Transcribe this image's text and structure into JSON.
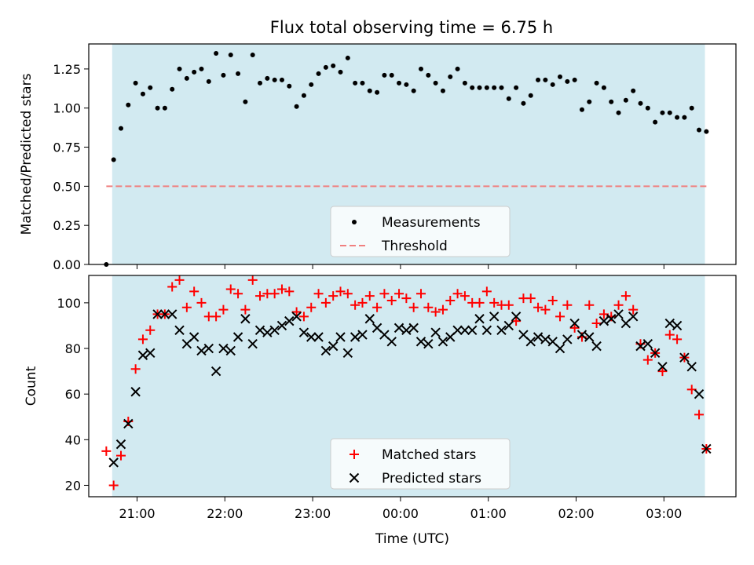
{
  "title": "Flux total observing time = 6.75 h",
  "colors": {
    "band": "#add8e6",
    "measurement": "#000000",
    "threshold": "#f08080",
    "matched": "#ff0000",
    "predicted": "#000000"
  },
  "chart_data": [
    {
      "type": "scatter",
      "title": "Flux total observing time = 6.75 h",
      "xlabel": "",
      "ylabel": "Matched/Predicted stars",
      "xlim_hours": [
        20.45,
        3.82
      ],
      "ylim": [
        0,
        1.41
      ],
      "yticks": [
        "0.00",
        "0.25",
        "0.50",
        "0.75",
        "1.00",
        "1.25"
      ],
      "observing_window": [
        "20:43",
        "03:28"
      ],
      "threshold": 0.5,
      "grid": false,
      "legend_position": "lower-center",
      "legend": [
        "Measurements",
        "Threshold"
      ],
      "series": [
        {
          "name": "Measurements",
          "x": [
            "20:39",
            "20:44",
            "20:49",
            "20:54",
            "20:59",
            "21:04",
            "21:09",
            "21:14",
            "21:19",
            "21:24",
            "21:29",
            "21:34",
            "21:39",
            "21:44",
            "21:49",
            "21:54",
            "21:59",
            "22:04",
            "22:09",
            "22:14",
            "22:19",
            "22:24",
            "22:29",
            "22:34",
            "22:39",
            "22:44",
            "22:49",
            "22:54",
            "22:59",
            "23:04",
            "23:09",
            "23:14",
            "23:19",
            "23:24",
            "23:29",
            "23:34",
            "23:39",
            "23:44",
            "23:49",
            "23:54",
            "23:59",
            "00:04",
            "00:09",
            "00:14",
            "00:19",
            "00:24",
            "00:29",
            "00:34",
            "00:39",
            "00:44",
            "00:49",
            "00:54",
            "00:59",
            "01:04",
            "01:09",
            "01:14",
            "01:19",
            "01:24",
            "01:29",
            "01:34",
            "01:39",
            "01:44",
            "01:49",
            "01:54",
            "01:59",
            "02:04",
            "02:09",
            "02:14",
            "02:19",
            "02:24",
            "02:29",
            "02:34",
            "02:39",
            "02:44",
            "02:49",
            "02:54",
            "02:59",
            "03:04",
            "03:09",
            "03:14",
            "03:19",
            "03:24",
            "03:29"
          ],
          "values": [
            0.0,
            0.67,
            0.87,
            1.02,
            1.16,
            1.09,
            1.13,
            1.0,
            1.0,
            1.12,
            1.25,
            1.19,
            1.23,
            1.25,
            1.17,
            1.35,
            1.21,
            1.34,
            1.22,
            1.04,
            1.34,
            1.16,
            1.19,
            1.18,
            1.18,
            1.14,
            1.01,
            1.08,
            1.15,
            1.22,
            1.26,
            1.27,
            1.23,
            1.32,
            1.16,
            1.16,
            1.11,
            1.1,
            1.21,
            1.21,
            1.16,
            1.15,
            1.11,
            1.25,
            1.21,
            1.16,
            1.11,
            1.2,
            1.25,
            1.16,
            1.13,
            1.13,
            1.13,
            1.13,
            1.13,
            1.06,
            1.13,
            1.03,
            1.08,
            1.18,
            1.18,
            1.15,
            1.2,
            1.17,
            1.18,
            0.99,
            1.04,
            1.16,
            1.13,
            1.04,
            0.97,
            1.05,
            1.11,
            1.03,
            1.0,
            0.91,
            0.97,
            0.97,
            0.94,
            0.94,
            1.0,
            0.86,
            0.85
          ]
        }
      ]
    },
    {
      "type": "scatter",
      "xlabel": "Time (UTC)",
      "ylabel": "Count",
      "xlim_hours": [
        20.45,
        3.82
      ],
      "ylim": [
        15,
        112
      ],
      "yticks": [
        "20",
        "40",
        "60",
        "80",
        "100"
      ],
      "xticks": [
        "21:00",
        "22:00",
        "23:00",
        "00:00",
        "01:00",
        "02:00",
        "03:00"
      ],
      "observing_window": [
        "20:43",
        "03:28"
      ],
      "grid": false,
      "legend_position": "lower-center",
      "legend": [
        "Matched stars",
        "Predicted stars"
      ],
      "series": [
        {
          "name": "Matched stars",
          "marker": "+",
          "x": [
            "20:39",
            "20:44",
            "20:49",
            "20:54",
            "20:59",
            "21:04",
            "21:09",
            "21:14",
            "21:19",
            "21:24",
            "21:29",
            "21:34",
            "21:39",
            "21:44",
            "21:49",
            "21:54",
            "21:59",
            "22:04",
            "22:09",
            "22:14",
            "22:19",
            "22:24",
            "22:29",
            "22:34",
            "22:39",
            "22:44",
            "22:49",
            "22:54",
            "22:59",
            "23:04",
            "23:09",
            "23:14",
            "23:19",
            "23:24",
            "23:29",
            "23:34",
            "23:39",
            "23:44",
            "23:49",
            "23:54",
            "23:59",
            "00:04",
            "00:09",
            "00:14",
            "00:19",
            "00:24",
            "00:29",
            "00:34",
            "00:39",
            "00:44",
            "00:49",
            "00:54",
            "00:59",
            "01:04",
            "01:09",
            "01:14",
            "01:19",
            "01:24",
            "01:29",
            "01:34",
            "01:39",
            "01:44",
            "01:49",
            "01:54",
            "01:59",
            "02:04",
            "02:09",
            "02:14",
            "02:19",
            "02:24",
            "02:29",
            "02:34",
            "02:39",
            "02:44",
            "02:49",
            "02:54",
            "02:59",
            "03:04",
            "03:09",
            "03:14",
            "03:19",
            "03:24",
            "03:29"
          ],
          "values": [
            35,
            20,
            33,
            48,
            71,
            84,
            88,
            95,
            95,
            107,
            110,
            98,
            105,
            100,
            94,
            94,
            97,
            106,
            104,
            97,
            110,
            103,
            104,
            104,
            106,
            105,
            96,
            94,
            98,
            104,
            100,
            103,
            105,
            104,
            99,
            100,
            103,
            98,
            104,
            101,
            104,
            102,
            98,
            104,
            98,
            96,
            97,
            101,
            104,
            103,
            100,
            100,
            105,
            100,
            99,
            99,
            92,
            102,
            102,
            98,
            97,
            101,
            94,
            99,
            89,
            85,
            99,
            91,
            95,
            94,
            99,
            103,
            97,
            82,
            75,
            78,
            70,
            86,
            84,
            76,
            62,
            51,
            36
          ]
        },
        {
          "name": "Predicted stars",
          "marker": "x",
          "x": [
            "20:44",
            "20:49",
            "20:54",
            "20:59",
            "21:04",
            "21:09",
            "21:14",
            "21:19",
            "21:24",
            "21:29",
            "21:34",
            "21:39",
            "21:44",
            "21:49",
            "21:54",
            "21:59",
            "22:04",
            "22:09",
            "22:14",
            "22:19",
            "22:24",
            "22:29",
            "22:34",
            "22:39",
            "22:44",
            "22:49",
            "22:54",
            "22:59",
            "23:04",
            "23:09",
            "23:14",
            "23:19",
            "23:24",
            "23:29",
            "23:34",
            "23:39",
            "23:44",
            "23:49",
            "23:54",
            "23:59",
            "00:04",
            "00:09",
            "00:14",
            "00:19",
            "00:24",
            "00:29",
            "00:34",
            "00:39",
            "00:44",
            "00:49",
            "00:54",
            "00:59",
            "01:04",
            "01:09",
            "01:14",
            "01:19",
            "01:24",
            "01:29",
            "01:34",
            "01:39",
            "01:44",
            "01:49",
            "01:54",
            "01:59",
            "02:04",
            "02:09",
            "02:14",
            "02:19",
            "02:24",
            "02:29",
            "02:34",
            "02:39",
            "02:44",
            "02:49",
            "02:54",
            "02:59",
            "03:04",
            "03:09",
            "03:14",
            "03:19",
            "03:24",
            "03:29"
          ],
          "values": [
            30,
            38,
            47,
            61,
            77,
            78,
            95,
            95,
            95,
            88,
            82,
            85,
            79,
            80,
            70,
            80,
            79,
            85,
            93,
            82,
            88,
            87,
            88,
            90,
            92,
            94,
            87,
            85,
            85,
            79,
            81,
            85,
            78,
            85,
            86,
            93,
            89,
            86,
            83,
            89,
            88,
            89,
            83,
            82,
            87,
            83,
            85,
            88,
            88,
            88,
            93,
            88,
            94,
            88,
            90,
            94,
            86,
            83,
            85,
            84,
            83,
            80,
            84,
            91,
            86,
            85,
            81,
            92,
            93,
            95,
            91,
            94,
            81,
            82,
            78,
            72,
            91,
            90,
            76,
            72,
            60,
            36
          ]
        }
      ]
    }
  ]
}
